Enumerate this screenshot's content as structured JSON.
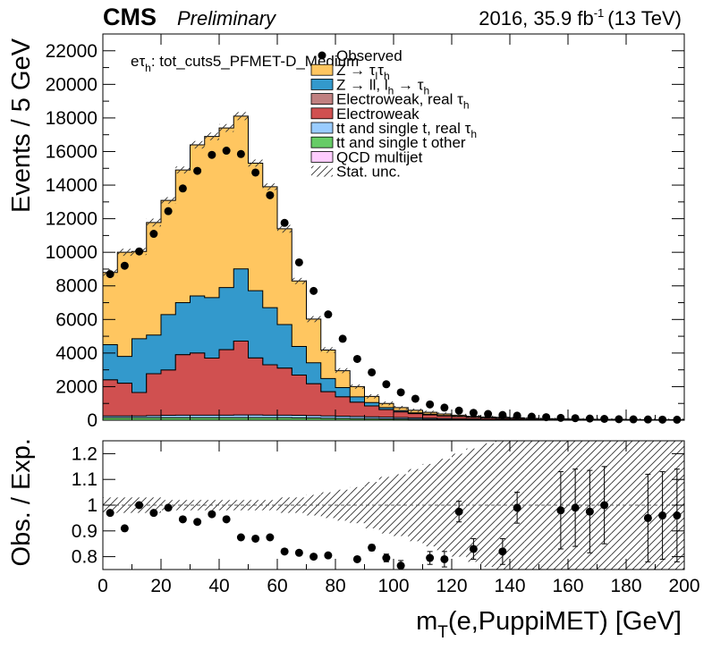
{
  "header": {
    "experiment": "CMS",
    "status": "Preliminary",
    "lumi": "2016, 35.9 fb",
    "lumi_exp": "-1",
    "energy": "(13 TeV)"
  },
  "channel_label": {
    "prefix": "eτ",
    "subscript": "h",
    "rest": ": tot_cuts5_PFMET-D_Medium"
  },
  "legend_texts": {
    "observed": "Observed",
    "ztt": "Z → τ",
    "ztt_sub": "l",
    "ztt_tail": "τ",
    "ztt_sub2": "h",
    "zll": "Z → ll, l",
    "zll_sub": "h",
    "zll_tail": " → τ",
    "zll_sub2": "h",
    "ewk_real": "Electroweak, real   τ",
    "ewk_real_sub": "h",
    "ewk": "Electroweak",
    "tt_real": "tt and single t, real   τ",
    "tt_real_sub": "h",
    "tt_other": "tt and single t other",
    "qcd": "QCD multijet",
    "stat": "Stat. unc."
  },
  "colors": {
    "ztt": "#ffc660",
    "zll": "#3399cc",
    "ewk_real": "#c08080",
    "ewk": "#d05050",
    "tt_real": "#99ccff",
    "tt_other": "#66cc66",
    "qcd": "#ffccff",
    "data": "#000000"
  },
  "chart_data": [
    {
      "type": "bar",
      "stacked": true,
      "ylabel": "Events / 5 GeV",
      "xlim": [
        0,
        200
      ],
      "ylim": [
        0,
        23000
      ],
      "yticks": [
        0,
        2000,
        4000,
        6000,
        8000,
        10000,
        12000,
        14000,
        16000,
        18000,
        20000,
        22000
      ],
      "ytick_labels": [
        "0",
        "2000",
        "4000",
        "6000",
        "8000",
        "10000",
        "12000",
        "14000",
        "16000",
        "18000",
        "20000",
        "22000"
      ],
      "legend_position": "top-right",
      "bin_width": 5,
      "x": [
        2.5,
        7.5,
        12.5,
        17.5,
        22.5,
        27.5,
        32.5,
        37.5,
        42.5,
        47.5,
        52.5,
        57.5,
        62.5,
        67.5,
        72.5,
        77.5,
        82.5,
        87.5,
        92.5,
        97.5,
        102.5,
        107.5,
        112.5,
        117.5,
        122.5,
        127.5,
        132.5,
        137.5,
        142.5,
        147.5,
        152.5,
        157.5,
        162.5,
        167.5,
        172.5,
        177.5,
        182.5,
        187.5,
        192.5,
        197.5
      ],
      "series": [
        {
          "name": "QCD multijet",
          "key": "qcd",
          "values": [
            0,
            0,
            0,
            0,
            0,
            0,
            0,
            0,
            0,
            0,
            0,
            0,
            0,
            0,
            0,
            0,
            0,
            0,
            0,
            0,
            0,
            0,
            0,
            0,
            0,
            0,
            0,
            0,
            0,
            0,
            0,
            0,
            0,
            0,
            0,
            0,
            0,
            0,
            0,
            0
          ]
        },
        {
          "name": "tt and single t other",
          "key": "tt_other",
          "values": [
            150,
            150,
            150,
            150,
            150,
            150,
            150,
            150,
            150,
            150,
            150,
            150,
            150,
            140,
            130,
            120,
            110,
            100,
            90,
            80,
            70,
            60,
            50,
            40,
            30,
            25,
            20,
            20,
            15,
            15,
            10,
            10,
            10,
            10,
            10,
            10,
            5,
            5,
            5,
            5
          ]
        },
        {
          "name": "tt and single t, real   τh",
          "key": "tt_real",
          "values": [
            100,
            100,
            100,
            120,
            140,
            150,
            150,
            150,
            150,
            160,
            160,
            150,
            150,
            150,
            140,
            130,
            130,
            120,
            110,
            100,
            90,
            80,
            70,
            60,
            50,
            40,
            35,
            30,
            25,
            20,
            15,
            15,
            10,
            10,
            10,
            10,
            5,
            5,
            5,
            5
          ]
        },
        {
          "name": "Electroweak",
          "key": "ewk",
          "values": [
            2150,
            1950,
            1400,
            2500,
            2700,
            3600,
            3700,
            3400,
            3900,
            4400,
            3400,
            3000,
            2800,
            2400,
            1900,
            1450,
            1150,
            850,
            650,
            450,
            330,
            250,
            200,
            150,
            130,
            100,
            80,
            70,
            60,
            50,
            40,
            30,
            25,
            20,
            20,
            15,
            15,
            10,
            10,
            10
          ]
        },
        {
          "name": "Electroweak, real   τh",
          "key": "ewk_real",
          "values": [
            0,
            0,
            0,
            0,
            0,
            0,
            0,
            0,
            0,
            0,
            0,
            0,
            0,
            0,
            0,
            0,
            0,
            0,
            0,
            0,
            0,
            0,
            0,
            0,
            0,
            0,
            0,
            0,
            0,
            0,
            0,
            0,
            0,
            0,
            0,
            0,
            0,
            0,
            0,
            0
          ]
        },
        {
          "name": "Z → ll, lh → τh",
          "key": "zll",
          "values": [
            2100,
            1600,
            3200,
            2300,
            3300,
            3100,
            3400,
            3600,
            3700,
            4300,
            4000,
            3400,
            2600,
            1700,
            1250,
            780,
            550,
            320,
            200,
            120,
            80,
            50,
            40,
            30,
            20,
            15,
            10,
            10,
            10,
            5,
            5,
            5,
            5,
            5,
            5,
            5,
            5,
            5,
            5,
            5
          ]
        },
        {
          "name": "Z → τlτh",
          "key": "ztt",
          "values": [
            4300,
            6200,
            5200,
            6700,
            6800,
            7900,
            9000,
            9600,
            9500,
            9100,
            7600,
            7200,
            5700,
            3900,
            2600,
            1700,
            1010,
            610,
            370,
            250,
            180,
            150,
            110,
            90,
            70,
            55,
            45,
            40,
            35,
            25,
            20,
            20,
            15,
            15,
            10,
            10,
            10,
            10,
            10,
            10
          ]
        }
      ],
      "observed": [
        8700,
        9200,
        10050,
        11100,
        12450,
        13800,
        14850,
        15800,
        16050,
        15850,
        14750,
        13400,
        11750,
        9400,
        7700,
        6300,
        4850,
        3650,
        2850,
        2140,
        1660,
        1280,
        940,
        750,
        570,
        440,
        370,
        310,
        270,
        210,
        180,
        140,
        120,
        100,
        80,
        60,
        50,
        45,
        35,
        30
      ]
    },
    {
      "type": "scatter",
      "xlabel": "m",
      "xlabel_sub": "T",
      "xlabel_rest": "(e,PuppiMET) [GeV]",
      "ylabel": "Obs. / Exp.",
      "xlim": [
        0,
        200
      ],
      "ylim": [
        0.75,
        1.25
      ],
      "xticks": [
        0,
        20,
        40,
        60,
        80,
        100,
        120,
        140,
        160,
        180,
        200
      ],
      "xtick_labels": [
        "0",
        "20",
        "40",
        "60",
        "80",
        "100",
        "120",
        "140",
        "160",
        "180",
        "200"
      ],
      "yticks": [
        0.8,
        0.9,
        1.0,
        1.1,
        1.2
      ],
      "ytick_labels": [
        "0.8",
        "0.9",
        "1",
        "1.1",
        "1.2"
      ],
      "reference_line": 1.0,
      "x": [
        2.5,
        7.5,
        12.5,
        17.5,
        22.5,
        27.5,
        32.5,
        37.5,
        42.5,
        47.5,
        52.5,
        57.5,
        62.5,
        67.5,
        72.5,
        77.5,
        87.5,
        92.5,
        97.5,
        102.5,
        112.5,
        117.5,
        122.5,
        127.5,
        137.5,
        142.5,
        157.5,
        162.5,
        167.5,
        172.5,
        187.5,
        192.5,
        197.5
      ],
      "ratio": [
        0.97,
        0.91,
        1.0,
        0.97,
        0.99,
        0.945,
        0.935,
        0.965,
        0.945,
        0.875,
        0.87,
        0.875,
        0.82,
        0.815,
        0.8,
        0.805,
        0.79,
        0.835,
        0.795,
        0.765,
        0.795,
        0.79,
        0.975,
        0.83,
        0.82,
        0.99,
        0.98,
        0.99,
        0.975,
        1.0,
        0.95,
        0.96,
        0.96
      ],
      "error": [
        0.005,
        0.005,
        0.005,
        0.005,
        0.005,
        0.005,
        0.005,
        0.005,
        0.005,
        0.005,
        0.005,
        0.005,
        0.006,
        0.007,
        0.008,
        0.009,
        0.01,
        0.012,
        0.015,
        0.02,
        0.025,
        0.03,
        0.04,
        0.04,
        0.05,
        0.06,
        0.15,
        0.15,
        0.16,
        0.15,
        0.17,
        0.17,
        0.18
      ],
      "stat_band": [
        0.03,
        0.03,
        0.03,
        0.03,
        0.02,
        0.02,
        0.02,
        0.02,
        0.02,
        0.02,
        0.02,
        0.02,
        0.03,
        0.03,
        0.04,
        0.05,
        0.06,
        0.07,
        0.09,
        0.11,
        0.12,
        0.14,
        0.16,
        0.18,
        0.2,
        0.22,
        0.24,
        0.26,
        0.28,
        0.3,
        0.3,
        0.3,
        0.3,
        0.3,
        0.3,
        0.3,
        0.3,
        0.3,
        0.3,
        0.3
      ]
    }
  ]
}
